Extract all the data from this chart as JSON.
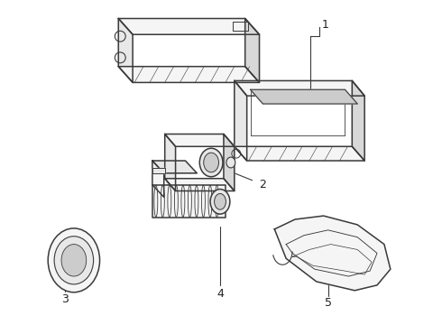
{
  "background_color": "#ffffff",
  "line_color": "#3a3a3a",
  "line_width": 1.1,
  "fig_width": 4.9,
  "fig_height": 3.6,
  "dpi": 100,
  "fl": "#f5f5f5",
  "fm": "#e8e8e8",
  "fd": "#d8d8d8",
  "fi": "#cccccc"
}
